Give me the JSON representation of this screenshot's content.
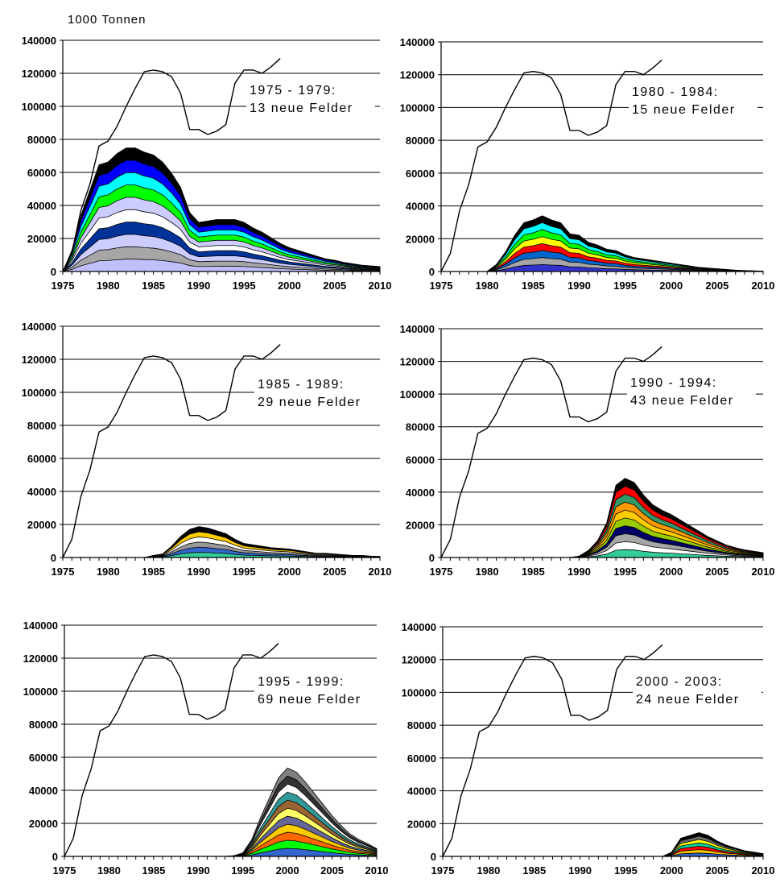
{
  "unit_label": "1000 Tonnen",
  "chart_data": [
    {
      "type": "area",
      "panel": "top-left",
      "annotation": [
        "1975 - 1979:",
        "13 neue Felder"
      ],
      "ylim": [
        0,
        140000
      ],
      "yticks": [
        0,
        20000,
        40000,
        60000,
        80000,
        100000,
        120000,
        140000
      ],
      "xlim": [
        1975,
        2010
      ],
      "xticks": [
        1975,
        1980,
        1985,
        1990,
        1995,
        2000,
        2005,
        2010
      ],
      "total_production": {
        "x": [
          1975,
          1976,
          1977,
          1978,
          1979,
          1980,
          1981,
          1982,
          1983,
          1984,
          1985,
          1986,
          1987,
          1988,
          1989,
          1990,
          1991,
          1992,
          1993,
          1994,
          1995,
          1996,
          1997,
          1998,
          1999
        ],
        "y": [
          0,
          11000,
          37000,
          53000,
          76000,
          79000,
          88000,
          100000,
          111000,
          121000,
          122000,
          121000,
          118000,
          108000,
          86000,
          86000,
          83000,
          85000,
          89000,
          114000,
          122000,
          122000,
          120000,
          124000,
          129000
        ]
      },
      "x": [
        1975,
        1976,
        1977,
        1978,
        1979,
        1980,
        1981,
        1982,
        1983,
        1984,
        1985,
        1986,
        1987,
        1988,
        1989,
        1990,
        1991,
        1992,
        1993,
        1994,
        1995,
        1996,
        1997,
        1998,
        1999,
        2000,
        2001,
        2002,
        2003,
        2004,
        2005,
        2006,
        2007,
        2008,
        2009,
        2010
      ],
      "stacked_total": [
        0,
        15000,
        40000,
        58000,
        76000,
        78000,
        84000,
        88000,
        88000,
        85000,
        83000,
        78000,
        70000,
        60000,
        42000,
        35000,
        36000,
        37000,
        37000,
        37000,
        35000,
        31000,
        28000,
        24000,
        20000,
        17000,
        15000,
        13000,
        11000,
        9000,
        8000,
        6500,
        5500,
        4500,
        4000,
        3500
      ],
      "series_colors": [
        "#c0c0ff",
        "#a6a6a6",
        "#ccccff",
        "#003399",
        "#ffffff",
        "#ccccff",
        "#00ff00",
        "#00ffff",
        "#0000ff",
        "#000000"
      ]
    },
    {
      "type": "area",
      "panel": "top-right",
      "annotation": [
        "1980 - 1984:",
        "15 neue Felder"
      ],
      "ylim": [
        0,
        140000
      ],
      "yticks": [
        0,
        20000,
        40000,
        60000,
        80000,
        100000,
        120000,
        140000
      ],
      "xlim": [
        1975,
        2010
      ],
      "xticks": [
        1975,
        1980,
        1985,
        1990,
        1995,
        2000,
        2005,
        2010
      ],
      "total_production": {
        "x": [
          1975,
          1976,
          1977,
          1978,
          1979,
          1980,
          1981,
          1982,
          1983,
          1984,
          1985,
          1986,
          1987,
          1988,
          1989,
          1990,
          1991,
          1992,
          1993,
          1994,
          1995,
          1996,
          1997,
          1998,
          1999
        ],
        "y": [
          0,
          11000,
          37000,
          53000,
          76000,
          79000,
          88000,
          100000,
          111000,
          121000,
          122000,
          121000,
          118000,
          108000,
          86000,
          86000,
          83000,
          85000,
          89000,
          114000,
          122000,
          122000,
          120000,
          124000,
          129000
        ]
      },
      "x": [
        1975,
        1976,
        1977,
        1978,
        1979,
        1980,
        1981,
        1982,
        1983,
        1984,
        1985,
        1986,
        1987,
        1988,
        1989,
        1990,
        1991,
        1992,
        1993,
        1994,
        1995,
        1996,
        1997,
        1998,
        1999,
        2000,
        2001,
        2002,
        2003,
        2004,
        2005,
        2006,
        2007,
        2008,
        2009,
        2010
      ],
      "stacked_total": [
        0,
        0,
        0,
        0,
        0,
        0,
        5000,
        14000,
        26000,
        35000,
        37000,
        40000,
        37000,
        35000,
        27000,
        26000,
        21000,
        19000,
        16000,
        15000,
        12000,
        10000,
        9000,
        8000,
        7000,
        6000,
        5000,
        4000,
        3000,
        2500,
        2000,
        1500,
        1000,
        700,
        500,
        300
      ],
      "series_colors": [
        "#3333cc",
        "#a6a6a6",
        "#0066cc",
        "#ff0000",
        "#ffff00",
        "#00ff00",
        "#00ffff",
        "#000000"
      ]
    },
    {
      "type": "area",
      "panel": "middle-left",
      "annotation": [
        "1985 - 1989:",
        "29 neue Felder"
      ],
      "ylim": [
        0,
        140000
      ],
      "yticks": [
        0,
        20000,
        40000,
        60000,
        80000,
        100000,
        120000,
        140000
      ],
      "xlim": [
        1975,
        2010
      ],
      "xticks": [
        1975,
        1980,
        1985,
        1990,
        1995,
        2000,
        2005,
        2010
      ],
      "total_production": {
        "x": [
          1975,
          1976,
          1977,
          1978,
          1979,
          1980,
          1981,
          1982,
          1983,
          1984,
          1985,
          1986,
          1987,
          1988,
          1989,
          1990,
          1991,
          1992,
          1993,
          1994,
          1995,
          1996,
          1997,
          1998,
          1999
        ],
        "y": [
          0,
          11000,
          37000,
          53000,
          76000,
          79000,
          88000,
          100000,
          111000,
          121000,
          122000,
          121000,
          118000,
          108000,
          86000,
          86000,
          83000,
          85000,
          89000,
          114000,
          122000,
          122000,
          120000,
          124000,
          129000
        ]
      },
      "x": [
        1975,
        1976,
        1977,
        1978,
        1979,
        1980,
        1981,
        1982,
        1983,
        1984,
        1985,
        1986,
        1987,
        1988,
        1989,
        1990,
        1991,
        1992,
        1993,
        1994,
        1995,
        1996,
        1997,
        1998,
        1999,
        2000,
        2001,
        2002,
        2003,
        2004,
        2005,
        2006,
        2007,
        2008,
        2009,
        2010
      ],
      "stacked_total": [
        0,
        0,
        0,
        0,
        0,
        0,
        0,
        0,
        0,
        0,
        1500,
        2500,
        8000,
        15000,
        20000,
        22000,
        21000,
        19000,
        17000,
        13000,
        10000,
        9000,
        8000,
        7000,
        6500,
        6000,
        5000,
        4000,
        3000,
        3000,
        2500,
        2000,
        1500,
        1500,
        1000,
        800
      ],
      "series_colors": [
        "#33cc99",
        "#3366cc",
        "#999999",
        "#ffffff",
        "#ffcc00",
        "#000000"
      ]
    },
    {
      "type": "area",
      "panel": "middle-right",
      "annotation": [
        "1990 - 1994:",
        "43 neue Felder"
      ],
      "ylim": [
        0,
        140000
      ],
      "yticks": [
        0,
        20000,
        40000,
        60000,
        80000,
        100000,
        120000,
        140000
      ],
      "xlim": [
        1975,
        2010
      ],
      "xticks": [
        1975,
        1980,
        1985,
        1990,
        1995,
        2000,
        2005,
        2010
      ],
      "total_production": {
        "x": [
          1975,
          1976,
          1977,
          1978,
          1979,
          1980,
          1981,
          1982,
          1983,
          1984,
          1985,
          1986,
          1987,
          1988,
          1989,
          1990,
          1991,
          1992,
          1993,
          1994,
          1995,
          1996,
          1997,
          1998,
          1999
        ],
        "y": [
          0,
          11000,
          37000,
          53000,
          76000,
          79000,
          88000,
          100000,
          111000,
          121000,
          122000,
          121000,
          118000,
          108000,
          86000,
          86000,
          83000,
          85000,
          89000,
          114000,
          122000,
          122000,
          120000,
          124000,
          129000
        ]
      },
      "x": [
        1975,
        1976,
        1977,
        1978,
        1979,
        1980,
        1981,
        1982,
        1983,
        1984,
        1985,
        1986,
        1987,
        1988,
        1989,
        1990,
        1991,
        1992,
        1993,
        1994,
        1995,
        1996,
        1997,
        1998,
        1999,
        2000,
        2001,
        2002,
        2003,
        2004,
        2005,
        2006,
        2007,
        2008,
        2009,
        2010
      ],
      "stacked_total": [
        0,
        0,
        0,
        0,
        0,
        0,
        0,
        0,
        0,
        0,
        0,
        0,
        0,
        0,
        0,
        1000,
        5000,
        12000,
        25000,
        52000,
        57000,
        54000,
        45000,
        38000,
        34000,
        31000,
        27000,
        23000,
        19000,
        15000,
        12000,
        9000,
        7000,
        5500,
        4500,
        3500
      ],
      "series_colors": [
        "#33cc99",
        "#ffffff",
        "#a6a6a6",
        "#000066",
        "#99cc00",
        "#ffcc00",
        "#ff9900",
        "#339966",
        "#ff0000",
        "#000000"
      ]
    },
    {
      "type": "area",
      "panel": "bottom-left",
      "annotation": [
        "1995 - 1999:",
        "69 neue Felder"
      ],
      "ylim": [
        0,
        140000
      ],
      "yticks": [
        0,
        20000,
        40000,
        60000,
        80000,
        100000,
        120000,
        140000
      ],
      "xlim": [
        1975,
        2010
      ],
      "xticks": [
        1975,
        1980,
        1985,
        1990,
        1995,
        2000,
        2005,
        2010
      ],
      "total_production": {
        "x": [
          1975,
          1976,
          1977,
          1978,
          1979,
          1980,
          1981,
          1982,
          1983,
          1984,
          1985,
          1986,
          1987,
          1988,
          1989,
          1990,
          1991,
          1992,
          1993,
          1994,
          1995,
          1996,
          1997,
          1998,
          1999
        ],
        "y": [
          0,
          11000,
          37000,
          53000,
          76000,
          79000,
          88000,
          100000,
          111000,
          121000,
          122000,
          121000,
          118000,
          108000,
          86000,
          86000,
          83000,
          85000,
          89000,
          114000,
          122000,
          122000,
          120000,
          124000,
          129000
        ]
      },
      "x": [
        1975,
        1976,
        1977,
        1978,
        1979,
        1980,
        1981,
        1982,
        1983,
        1984,
        1985,
        1986,
        1987,
        1988,
        1989,
        1990,
        1991,
        1992,
        1993,
        1994,
        1995,
        1996,
        1997,
        1998,
        1999,
        2000,
        2001,
        2002,
        2003,
        2004,
        2005,
        2006,
        2007,
        2008,
        2009,
        2010
      ],
      "stacked_total": [
        0,
        0,
        0,
        0,
        0,
        0,
        0,
        0,
        0,
        0,
        0,
        0,
        0,
        0,
        0,
        0,
        0,
        0,
        0,
        500,
        2500,
        12000,
        28000,
        42000,
        56000,
        63000,
        60000,
        53000,
        45000,
        37000,
        29000,
        22000,
        16000,
        12000,
        9000,
        5500
      ],
      "series_colors": [
        "#3366cc",
        "#00ff00",
        "#ff6600",
        "#ffcc00",
        "#666699",
        "#ffff66",
        "#996633",
        "#339999",
        "#ffffff",
        "#333333",
        "#808080"
      ]
    },
    {
      "type": "area",
      "panel": "bottom-right",
      "annotation": [
        "2000 - 2003:",
        "24 neue Felder"
      ],
      "ylim": [
        0,
        140000
      ],
      "yticks": [
        0,
        20000,
        40000,
        60000,
        80000,
        100000,
        120000,
        140000
      ],
      "xlim": [
        1975,
        2010
      ],
      "xticks": [
        1975,
        1980,
        1985,
        1990,
        1995,
        2000,
        2005,
        2010
      ],
      "total_production": {
        "x": [
          1975,
          1976,
          1977,
          1978,
          1979,
          1980,
          1981,
          1982,
          1983,
          1984,
          1985,
          1986,
          1987,
          1988,
          1989,
          1990,
          1991,
          1992,
          1993,
          1994,
          1995,
          1996,
          1997,
          1998,
          1999
        ],
        "y": [
          0,
          11000,
          37000,
          53000,
          76000,
          79000,
          88000,
          100000,
          111000,
          121000,
          122000,
          121000,
          118000,
          108000,
          86000,
          86000,
          83000,
          85000,
          89000,
          114000,
          122000,
          122000,
          120000,
          124000,
          129000
        ]
      },
      "x": [
        1975,
        1976,
        1977,
        1978,
        1979,
        1980,
        1981,
        1982,
        1983,
        1984,
        1985,
        1986,
        1987,
        1988,
        1989,
        1990,
        1991,
        1992,
        1993,
        1994,
        1995,
        1996,
        1997,
        1998,
        1999,
        2000,
        2001,
        2002,
        2003,
        2004,
        2005,
        2006,
        2007,
        2008,
        2009,
        2010
      ],
      "stacked_total": [
        0,
        0,
        0,
        0,
        0,
        0,
        0,
        0,
        0,
        0,
        0,
        0,
        0,
        0,
        0,
        0,
        0,
        0,
        0,
        0,
        0,
        0,
        0,
        0,
        0,
        3000,
        13000,
        15000,
        17000,
        15000,
        11000,
        8000,
        6000,
        4000,
        3000,
        2000
      ],
      "series_colors": [
        "#3366cc",
        "#ffcc00",
        "#ff0000",
        "#00cc99",
        "#ffff00",
        "#666666",
        "#000000"
      ]
    }
  ]
}
